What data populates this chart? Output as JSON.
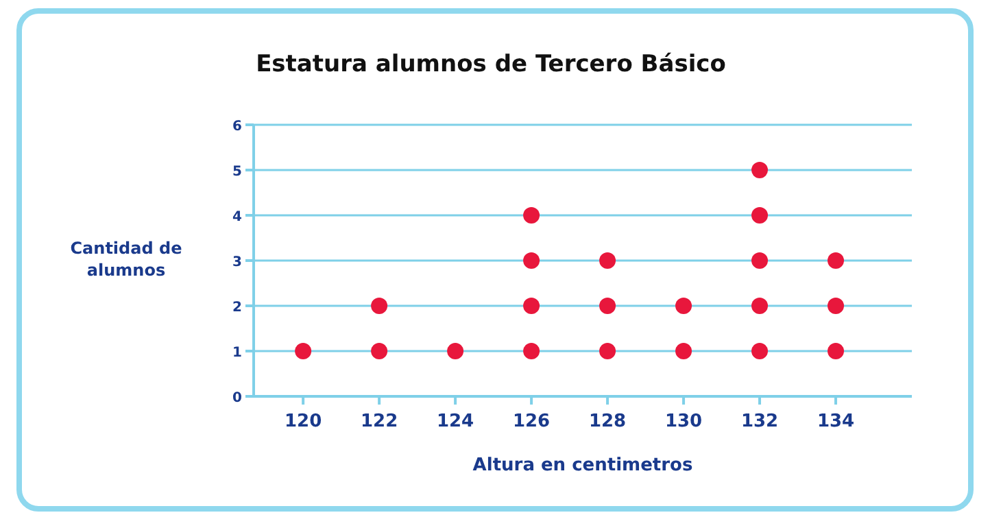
{
  "chart_data": {
    "type": "scatter",
    "title": "Estatura alumnos de Tercero Básico",
    "xlabel": "Altura en centimetros",
    "ylabel": "Cantidad de alumnos",
    "x": [
      120,
      122,
      122,
      124,
      126,
      126,
      126,
      126,
      128,
      128,
      128,
      130,
      130,
      132,
      132,
      132,
      132,
      132,
      134,
      134,
      134
    ],
    "series": [
      {
        "color": "#e8173c",
        "values": [
          1,
          1,
          2,
          1,
          1,
          2,
          3,
          4,
          1,
          2,
          3,
          1,
          2,
          1,
          2,
          3,
          4,
          5,
          1,
          2,
          3
        ]
      }
    ],
    "xlim": [
      118.7,
      136
    ],
    "xticks": [
      120,
      122,
      124,
      126,
      128,
      130,
      132,
      134
    ],
    "ylim": [
      0,
      6
    ],
    "yticks": [
      0,
      1,
      2,
      3,
      4,
      5,
      6
    ],
    "grid": "y",
    "marker": "circle"
  }
}
